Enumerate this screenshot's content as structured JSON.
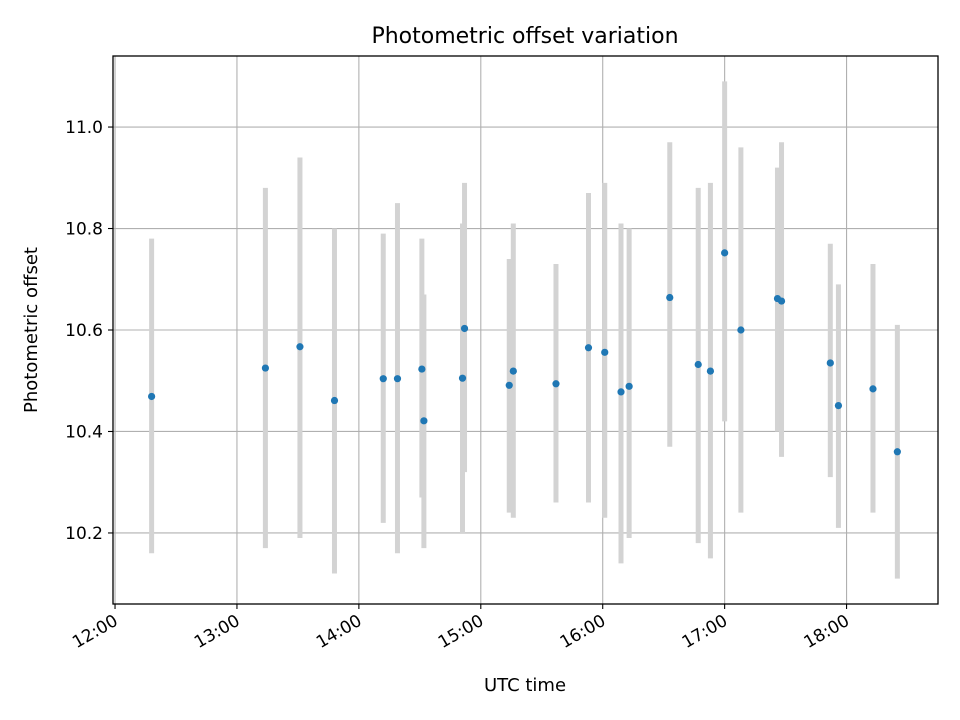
{
  "chart_data": {
    "type": "scatter",
    "title": "Photometric offset variation",
    "xlabel": "UTC time",
    "ylabel": "Photometric offset",
    "x_axis_kind": "time",
    "xlim": [
      "11:59",
      "18:45"
    ],
    "ylim": [
      10.06,
      11.14
    ],
    "xticks": [
      "12:00",
      "13:00",
      "14:00",
      "15:00",
      "16:00",
      "17:00",
      "18:00"
    ],
    "yticks": [
      10.2,
      10.4,
      10.6,
      10.8,
      11.0
    ],
    "ytick_labels": [
      "10.2",
      "10.4",
      "10.6",
      "10.8",
      "11.0"
    ],
    "grid": true,
    "marker_color": "#1f77b4",
    "errorbar_color": "#d3d3d3",
    "points": [
      {
        "time": "12:18",
        "y": 10.469,
        "ylow": 10.16,
        "yhigh": 10.78
      },
      {
        "time": "13:14",
        "y": 10.525,
        "ylow": 10.17,
        "yhigh": 10.88
      },
      {
        "time": "13:31",
        "y": 10.567,
        "ylow": 10.19,
        "yhigh": 10.94
      },
      {
        "time": "13:48",
        "y": 10.461,
        "ylow": 10.12,
        "yhigh": 10.8
      },
      {
        "time": "14:12",
        "y": 10.504,
        "ylow": 10.22,
        "yhigh": 10.79
      },
      {
        "time": "14:19",
        "y": 10.504,
        "ylow": 10.16,
        "yhigh": 10.85
      },
      {
        "time": "14:31",
        "y": 10.523,
        "ylow": 10.27,
        "yhigh": 10.78
      },
      {
        "time": "14:32",
        "y": 10.421,
        "ylow": 10.17,
        "yhigh": 10.67
      },
      {
        "time": "14:51",
        "y": 10.505,
        "ylow": 10.2,
        "yhigh": 10.81
      },
      {
        "time": "14:52",
        "y": 10.603,
        "ylow": 10.32,
        "yhigh": 10.89
      },
      {
        "time": "15:14",
        "y": 10.491,
        "ylow": 10.24,
        "yhigh": 10.74
      },
      {
        "time": "15:16",
        "y": 10.519,
        "ylow": 10.23,
        "yhigh": 10.81
      },
      {
        "time": "15:37",
        "y": 10.494,
        "ylow": 10.26,
        "yhigh": 10.73
      },
      {
        "time": "15:53",
        "y": 10.565,
        "ylow": 10.26,
        "yhigh": 10.87
      },
      {
        "time": "16:01",
        "y": 10.556,
        "ylow": 10.23,
        "yhigh": 10.89
      },
      {
        "time": "16:09",
        "y": 10.478,
        "ylow": 10.14,
        "yhigh": 10.81
      },
      {
        "time": "16:13",
        "y": 10.489,
        "ylow": 10.19,
        "yhigh": 10.8
      },
      {
        "time": "16:33",
        "y": 10.664,
        "ylow": 10.37,
        "yhigh": 10.97
      },
      {
        "time": "16:47",
        "y": 10.532,
        "ylow": 10.18,
        "yhigh": 10.88
      },
      {
        "time": "16:53",
        "y": 10.519,
        "ylow": 10.15,
        "yhigh": 10.89
      },
      {
        "time": "17:00",
        "y": 10.752,
        "ylow": 10.42,
        "yhigh": 11.09
      },
      {
        "time": "17:08",
        "y": 10.6,
        "ylow": 10.24,
        "yhigh": 10.96
      },
      {
        "time": "17:26",
        "y": 10.662,
        "ylow": 10.4,
        "yhigh": 10.92
      },
      {
        "time": "17:28",
        "y": 10.657,
        "ylow": 10.35,
        "yhigh": 10.97
      },
      {
        "time": "17:52",
        "y": 10.535,
        "ylow": 10.31,
        "yhigh": 10.77
      },
      {
        "time": "17:56",
        "y": 10.451,
        "ylow": 10.21,
        "yhigh": 10.69
      },
      {
        "time": "18:13",
        "y": 10.484,
        "ylow": 10.24,
        "yhigh": 10.73
      },
      {
        "time": "18:25",
        "y": 10.36,
        "ylow": 10.11,
        "yhigh": 10.61
      }
    ]
  }
}
